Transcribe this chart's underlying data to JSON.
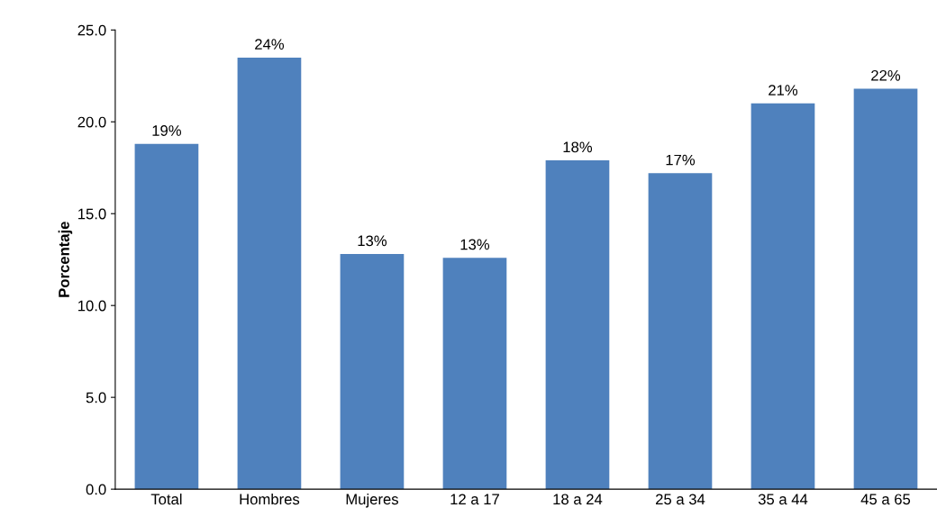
{
  "chart_data": {
    "type": "bar",
    "ylabel": "Porcentaje",
    "categories": [
      "Total",
      "Hombres",
      "Mujeres",
      "12 a 17",
      "18 a 24",
      "25 a 34",
      "35 a 44",
      "45 a 65"
    ],
    "values": [
      18.8,
      23.5,
      12.8,
      12.6,
      17.9,
      17.2,
      21.0,
      21.8
    ],
    "value_labels": [
      "19%",
      "24%",
      "13%",
      "13%",
      "18%",
      "17%",
      "21%",
      "22%"
    ],
    "color": "#4f81bd",
    "ylim": [
      0,
      25
    ],
    "yticks": [
      {
        "value": 0,
        "label": "0.0"
      },
      {
        "value": 5,
        "label": "5.0"
      },
      {
        "value": 10,
        "label": "10.0"
      },
      {
        "value": 15,
        "label": "15.0"
      },
      {
        "value": 20,
        "label": "20.0"
      },
      {
        "value": 25,
        "label": "25.0"
      }
    ],
    "grid": false,
    "legend": false
  }
}
